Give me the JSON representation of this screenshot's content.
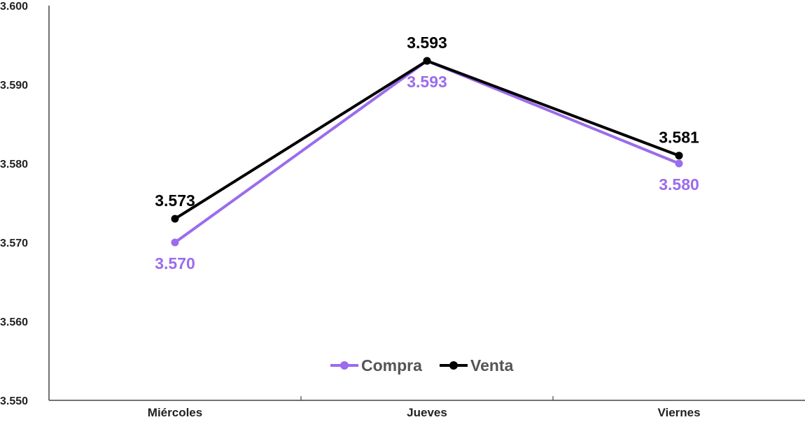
{
  "chart_data": {
    "type": "line",
    "title": "",
    "xlabel": "",
    "ylabel": "",
    "categories": [
      "Miércoles",
      "Jueves",
      "Viernes"
    ],
    "ylim": [
      3.55,
      3.6
    ],
    "yticks": [
      3.55,
      3.56,
      3.57,
      3.58,
      3.59,
      3.6
    ],
    "ytick_labels": [
      "3.550",
      "3.560",
      "3.570",
      "3.580",
      "3.590",
      "3.600"
    ],
    "grid": false,
    "legend_position": "bottom-center",
    "series": [
      {
        "name": "Compra",
        "color": "#9b6cec",
        "values": [
          3.57,
          3.593,
          3.58
        ],
        "labels": [
          "3.570",
          "3.593",
          "3.580"
        ],
        "label_position": "below"
      },
      {
        "name": "Venta",
        "color": "#000000",
        "values": [
          3.573,
          3.593,
          3.581
        ],
        "labels": [
          "3.573",
          "3.593",
          "3.581"
        ],
        "label_position": "above"
      }
    ]
  }
}
